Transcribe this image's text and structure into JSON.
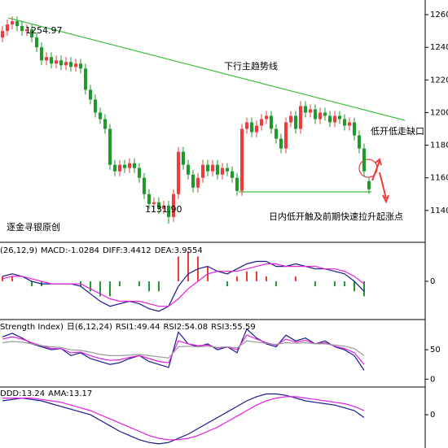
{
  "chart_data": [
    {
      "type": "candlestick",
      "open": [
        1246,
        1250,
        1254,
        1256,
        1253,
        1250,
        1251,
        1246,
        1240,
        1232,
        1234,
        1230,
        1232,
        1229,
        1231,
        1228,
        1230,
        1227,
        1214,
        1208,
        1200,
        1196,
        1190,
        1168,
        1164,
        1168,
        1166,
        1169,
        1166,
        1160,
        1150,
        1144,
        1145,
        1141,
        1143,
        1136,
        1150,
        1176,
        1168,
        1162,
        1154,
        1160,
        1168,
        1164,
        1168,
        1162,
        1166,
        1164,
        1160,
        1152,
        1190,
        1194,
        1188,
        1192,
        1196,
        1198,
        1190,
        1184,
        1178,
        1194,
        1198,
        1190,
        1204,
        1200,
        1202,
        1196,
        1200,
        1198,
        1194,
        1198,
        1196,
        1192,
        1194,
        1186,
        1178,
        1158
      ],
      "high": [
        1253,
        1257,
        1259,
        1259,
        1256,
        1254,
        1254,
        1249,
        1243,
        1237,
        1237,
        1235,
        1235,
        1234,
        1234,
        1233,
        1233,
        1230,
        1217,
        1211,
        1203,
        1199,
        1193,
        1171,
        1171,
        1171,
        1172,
        1172,
        1169,
        1163,
        1153,
        1148,
        1148,
        1146,
        1146,
        1153,
        1179,
        1179,
        1171,
        1165,
        1163,
        1171,
        1171,
        1171,
        1171,
        1169,
        1169,
        1167,
        1163,
        1193,
        1197,
        1197,
        1195,
        1199,
        1201,
        1201,
        1193,
        1187,
        1197,
        1201,
        1201,
        1207,
        1207,
        1205,
        1205,
        1203,
        1203,
        1201,
        1201,
        1201,
        1199,
        1197,
        1197,
        1189,
        1181,
        1160
      ],
      "low": [
        1243,
        1247,
        1251,
        1250,
        1247,
        1247,
        1243,
        1237,
        1229,
        1229,
        1227,
        1227,
        1226,
        1226,
        1225,
        1225,
        1224,
        1211,
        1205,
        1197,
        1193,
        1187,
        1165,
        1161,
        1161,
        1163,
        1163,
        1163,
        1157,
        1147,
        1141,
        1141,
        1138,
        1138,
        1131.9,
        1133,
        1147,
        1165,
        1159,
        1151,
        1151,
        1157,
        1161,
        1161,
        1159,
        1159,
        1161,
        1157,
        1149,
        1149,
        1187,
        1185,
        1185,
        1189,
        1193,
        1187,
        1181,
        1175,
        1175,
        1191,
        1187,
        1187,
        1197,
        1197,
        1193,
        1193,
        1195,
        1191,
        1191,
        1193,
        1189,
        1189,
        1183,
        1175,
        1161,
        1150
      ],
      "close": [
        1250,
        1254,
        1256,
        1253,
        1250,
        1251,
        1246,
        1240,
        1232,
        1234,
        1230,
        1232,
        1229,
        1231,
        1228,
        1230,
        1227,
        1214,
        1208,
        1200,
        1196,
        1190,
        1168,
        1164,
        1168,
        1166,
        1169,
        1166,
        1160,
        1150,
        1144,
        1145,
        1141,
        1143,
        1136,
        1150,
        1176,
        1168,
        1162,
        1154,
        1160,
        1168,
        1164,
        1168,
        1162,
        1166,
        1164,
        1160,
        1152,
        1190,
        1194,
        1188,
        1192,
        1196,
        1198,
        1190,
        1184,
        1178,
        1194,
        1198,
        1190,
        1204,
        1200,
        1202,
        1196,
        1200,
        1198,
        1194,
        1198,
        1196,
        1192,
        1194,
        1186,
        1178,
        1164,
        1153
      ],
      "up_color": "#ee3b3b",
      "down_color": "#1f9a2a",
      "ylim": [
        1121,
        1269
      ],
      "yticks": [
        1140,
        1160,
        1180,
        1200,
        1220,
        1240,
        1260
      ],
      "annotations": [
        "1254.97",
        "1131.90",
        "下行主趋势线",
        "低开低走缺口",
        "日内低开触及前期快速拉升起涨点",
        "逐金寻银原创"
      ]
    },
    {
      "type": "line",
      "header": [
        "(26,12,9)"
      ],
      "series": [
        {
          "name": "MACD:-1.0284",
          "type": "bar",
          "color": "#888888",
          "up_color": "#ee3b3b",
          "down_color": "#1f9a2a",
          "values": [
            2,
            2,
            0,
            -2,
            -2,
            0,
            0,
            0,
            -2,
            -4,
            -6,
            -6,
            -2,
            0,
            -2,
            -4,
            -4,
            0,
            10,
            12,
            10,
            6,
            0,
            -2,
            2,
            4,
            4,
            2,
            -2,
            0,
            2,
            0,
            -2,
            0,
            -2,
            -2,
            -4,
            -6
          ]
        },
        {
          "name": "DIFF:3.4412",
          "color": "#1a1a8c",
          "values": [
            2,
            3,
            2,
            0,
            -1,
            -1,
            -1,
            -1,
            -2,
            -5,
            -8,
            -10,
            -9,
            -8,
            -9,
            -11,
            -12,
            -10,
            -2,
            3,
            5,
            6,
            4,
            3,
            5,
            7,
            8,
            8,
            6,
            6,
            7,
            6,
            5,
            5,
            4,
            3,
            0,
            -4
          ]
        },
        {
          "name": "DEA:3.9554",
          "color": "#e020e0",
          "values": [
            1,
            2,
            2,
            1,
            0,
            -1,
            -1,
            -1,
            -1,
            -3,
            -5,
            -7,
            -8,
            -8,
            -8,
            -9,
            -10,
            -10,
            -7,
            -3,
            0,
            3,
            4,
            4,
            4,
            5,
            6,
            7,
            7,
            6,
            6,
            6,
            6,
            5,
            5,
            4,
            2,
            -1
          ]
        }
      ],
      "ylim": [
        -15,
        15
      ],
      "yticks": [
        0
      ]
    },
    {
      "type": "line",
      "header": [
        "Strength Index)",
        "日(6,12,24)"
      ],
      "series": [
        {
          "name": "RSI1:49.44",
          "color": "#1a1a8c",
          "values": [
            72,
            78,
            70,
            60,
            55,
            50,
            52,
            40,
            45,
            35,
            30,
            25,
            28,
            35,
            40,
            30,
            25,
            20,
            80,
            60,
            55,
            60,
            50,
            55,
            45,
            85,
            70,
            60,
            55,
            75,
            65,
            70,
            60,
            65,
            55,
            50,
            40,
            15
          ]
        },
        {
          "name": "RSI2:54.08",
          "color": "#e020e0",
          "values": [
            68,
            72,
            68,
            62,
            57,
            52,
            52,
            45,
            46,
            40,
            35,
            32,
            33,
            37,
            40,
            35,
            30,
            28,
            65,
            60,
            57,
            58,
            53,
            55,
            50,
            75,
            68,
            62,
            58,
            68,
            63,
            66,
            60,
            62,
            56,
            52,
            45,
            25
          ]
        },
        {
          "name": "RSI3:55.59",
          "color": "#999999",
          "values": [
            62,
            64,
            63,
            60,
            57,
            55,
            54,
            50,
            49,
            46,
            42,
            40,
            40,
            41,
            42,
            40,
            38,
            36,
            55,
            56,
            55,
            56,
            54,
            55,
            53,
            65,
            63,
            61,
            59,
            62,
            61,
            62,
            60,
            60,
            58,
            56,
            52,
            40
          ]
        }
      ],
      "ylim": [
        -12,
        100
      ],
      "yticks": [
        0,
        50
      ]
    },
    {
      "type": "line",
      "header": [],
      "series": [
        {
          "name": "DDD:13.24",
          "color": "#1a1a8c",
          "values": [
            10,
            11,
            12,
            11,
            10,
            8,
            6,
            4,
            2,
            0,
            -4,
            -8,
            -12,
            -15,
            -18,
            -20,
            -21,
            -20,
            -17,
            -14,
            -10,
            -6,
            -2,
            2,
            6,
            10,
            13,
            15,
            15,
            14,
            12,
            10,
            9,
            8,
            7,
            5,
            3,
            -2
          ]
        },
        {
          "name": "AMA:13.17",
          "color": "#e020e0",
          "values": [
            12,
            12,
            12,
            12,
            11,
            10,
            9,
            7,
            5,
            3,
            0,
            -3,
            -6,
            -9,
            -12,
            -15,
            -17,
            -18,
            -18,
            -17,
            -15,
            -12,
            -9,
            -5,
            -1,
            3,
            7,
            10,
            12,
            13,
            13,
            12,
            11,
            10,
            9,
            8,
            6,
            3
          ]
        }
      ],
      "ylim": [
        -24,
        20
      ],
      "yticks": [
        0
      ]
    }
  ]
}
